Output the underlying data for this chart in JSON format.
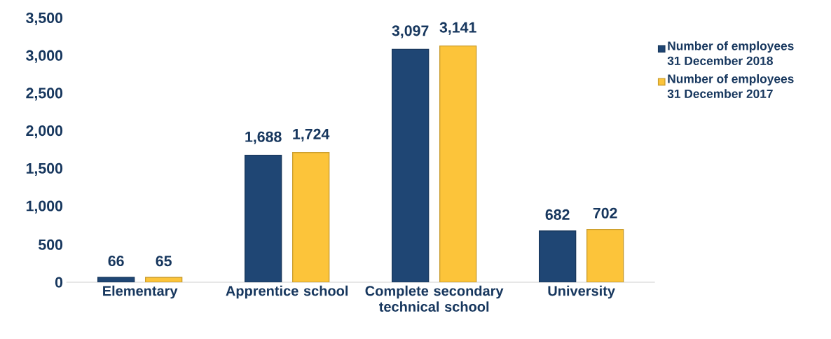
{
  "chart_data": {
    "type": "bar",
    "categories": [
      "Elementary",
      "Apprentice school",
      "Complete secondary technical school",
      "University"
    ],
    "series": [
      {
        "name": "Number of employees 31 December 2018",
        "color": "#1f4674",
        "values": [
          66,
          1688,
          3097,
          682
        ],
        "value_labels": [
          "66",
          "1,688",
          "3,097",
          "682"
        ]
      },
      {
        "name": "Number of employees 31 December 2017",
        "color": "#fcc43a",
        "values": [
          65,
          1724,
          3141,
          702
        ],
        "value_labels": [
          "65",
          "1,724",
          "3,141",
          "702"
        ]
      }
    ],
    "ylim": [
      0,
      3500
    ],
    "yticks": [
      0,
      {
        "value": 500,
        "label": "500"
      },
      {
        "value": 1000,
        "label": "1,000"
      },
      {
        "value": 1500,
        "label": "1,500"
      },
      {
        "value": 2000,
        "label": "2,000"
      },
      {
        "value": 2500,
        "label": "2,500"
      },
      {
        "value": 3000,
        "label": "3,000"
      },
      {
        "value": 3500,
        "label": "3,500"
      }
    ],
    "grid": false,
    "legend": "right"
  }
}
